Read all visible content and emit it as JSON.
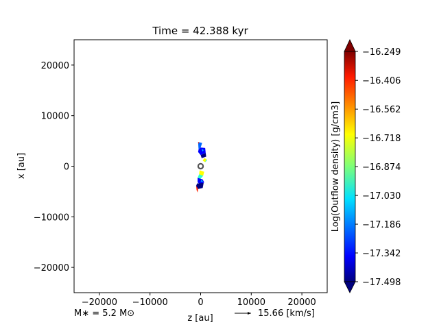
{
  "chart_data": {
    "type": "heatmap",
    "title": "Time = 42.388 kyr",
    "xlabel": "z [au]",
    "ylabel": "x [au]",
    "xlim": [
      -25000,
      25000
    ],
    "ylim": [
      -25000,
      25000
    ],
    "xticks": [
      -20000,
      -10000,
      0,
      10000,
      20000
    ],
    "xtick_labels": [
      "−20000",
      "−10000",
      "0",
      "10000",
      "20000"
    ],
    "yticks": [
      -20000,
      -10000,
      0,
      10000,
      20000
    ],
    "ytick_labels": [
      "−20000",
      "−10000",
      "0",
      "10000",
      "20000"
    ],
    "grid": false,
    "colorbar": {
      "label": "Log(Outflow density) [g/cm3]",
      "colormap": "jet",
      "extend": "both",
      "range": [
        -17.498,
        -16.249
      ],
      "ticks": [
        -16.249,
        -16.406,
        -16.562,
        -16.718,
        -16.874,
        -17.03,
        -17.186,
        -17.342,
        -17.498
      ],
      "tick_labels": [
        "−16.249",
        "−16.406",
        "−16.562",
        "−16.718",
        "−16.874",
        "−17.030",
        "−17.186",
        "−17.342",
        "−17.498"
      ]
    },
    "star_marker": {
      "z": 0,
      "x": 0
    },
    "outflow_regions": [
      {
        "name": "upper-lobe",
        "z_range": [
          -500,
          1200
        ],
        "x_range": [
          -800,
          4800
        ]
      },
      {
        "name": "lower-lobe",
        "z_range": [
          -800,
          700
        ],
        "x_range": [
          -5200,
          1000
        ]
      }
    ],
    "annotations": {
      "mass_label": "M∗ = 5.2 M⊙",
      "vector_key_label": "15.66 [km/s]"
    }
  }
}
